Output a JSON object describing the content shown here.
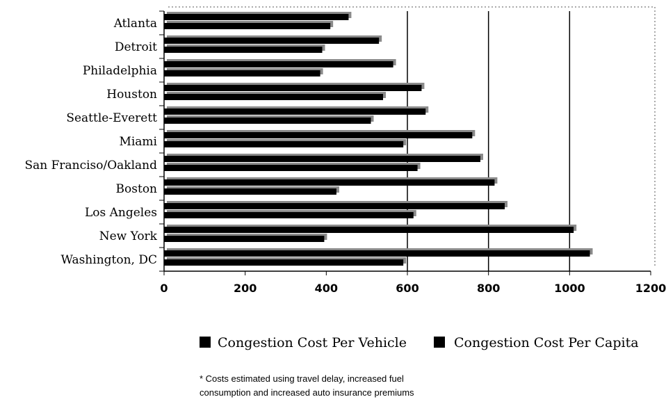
{
  "chart_data": {
    "type": "bar",
    "orientation": "horizontal",
    "categories": [
      "Atlanta",
      "Detroit",
      "Philadelphia",
      "Houston",
      "Seattle-Everett",
      "Miami",
      "San Franciso/Oakland",
      "Boston",
      "Los Angeles",
      "New York",
      "Washington, DC"
    ],
    "series": [
      {
        "name": "Congestion Cost Per Vehicle",
        "values": [
          455,
          530,
          565,
          635,
          645,
          760,
          780,
          815,
          840,
          1010,
          1050
        ],
        "color": "#000000"
      },
      {
        "name": "Congestion Cost Per Capita",
        "values": [
          410,
          390,
          385,
          540,
          510,
          590,
          625,
          425,
          615,
          395,
          590
        ],
        "color": "#000000"
      }
    ],
    "xlim": [
      0,
      1200
    ],
    "xticks": [
      "0",
      "200",
      "400",
      "600",
      "800",
      "1000",
      "1200"
    ],
    "grid_lines_x": [
      600,
      800,
      1000
    ],
    "legend_position": "bottom",
    "title": "",
    "xlabel": "",
    "ylabel": ""
  },
  "footnote": {
    "line1": "* Costs estimated using travel delay, increased fuel",
    "line2": "consumption and increased auto insurance premiums"
  }
}
